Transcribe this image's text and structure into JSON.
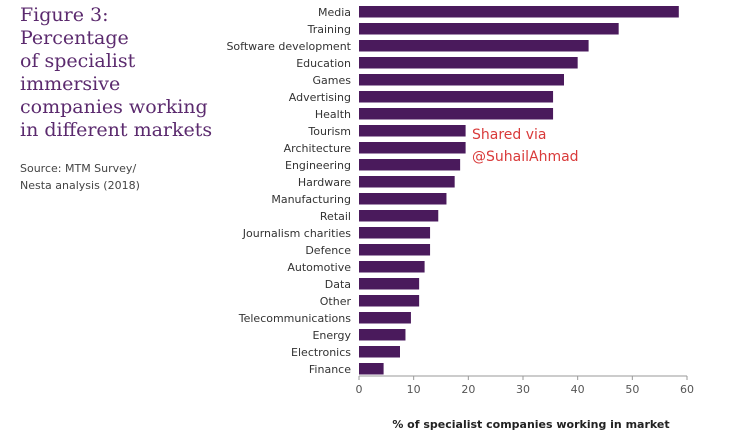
{
  "figure": {
    "title_lines": [
      "Figure 3:",
      "Percentage",
      "of specialist",
      "immersive",
      "companies working",
      "in different markets"
    ],
    "source_lines": [
      "Source: MTM Survey/",
      "Nesta analysis (2018)"
    ]
  },
  "watermark": {
    "lines": [
      "Shared via",
      "@SuhailAhmad"
    ]
  },
  "colors": {
    "bar": "#4a1a5c",
    "title": "#5b2a6e",
    "watermark": "#d93a3a",
    "axis": "#999999"
  },
  "chart_data": {
    "type": "bar",
    "orientation": "horizontal",
    "categories": [
      "Media",
      "Training",
      "Software development",
      "Education",
      "Games",
      "Advertising",
      "Health",
      "Tourism",
      "Architecture",
      "Engineering",
      "Hardware",
      "Manufacturing",
      "Retail",
      "Journalism charities",
      "Defence",
      "Automotive",
      "Data",
      "Other",
      "Telecommunications",
      "Energy",
      "Electronics",
      "Finance"
    ],
    "values": [
      58.5,
      47.5,
      42,
      40,
      37.5,
      35.5,
      35.5,
      19.5,
      19.5,
      18.5,
      17.5,
      16,
      14.5,
      13,
      13,
      12,
      11,
      11,
      9.5,
      8.5,
      7.5,
      4.5
    ],
    "xlabel": "% of specialist companies working in market",
    "xlim": [
      0,
      60
    ],
    "xticks": [
      0,
      10,
      20,
      30,
      40,
      50,
      60
    ],
    "grid": false,
    "legend": "none"
  }
}
